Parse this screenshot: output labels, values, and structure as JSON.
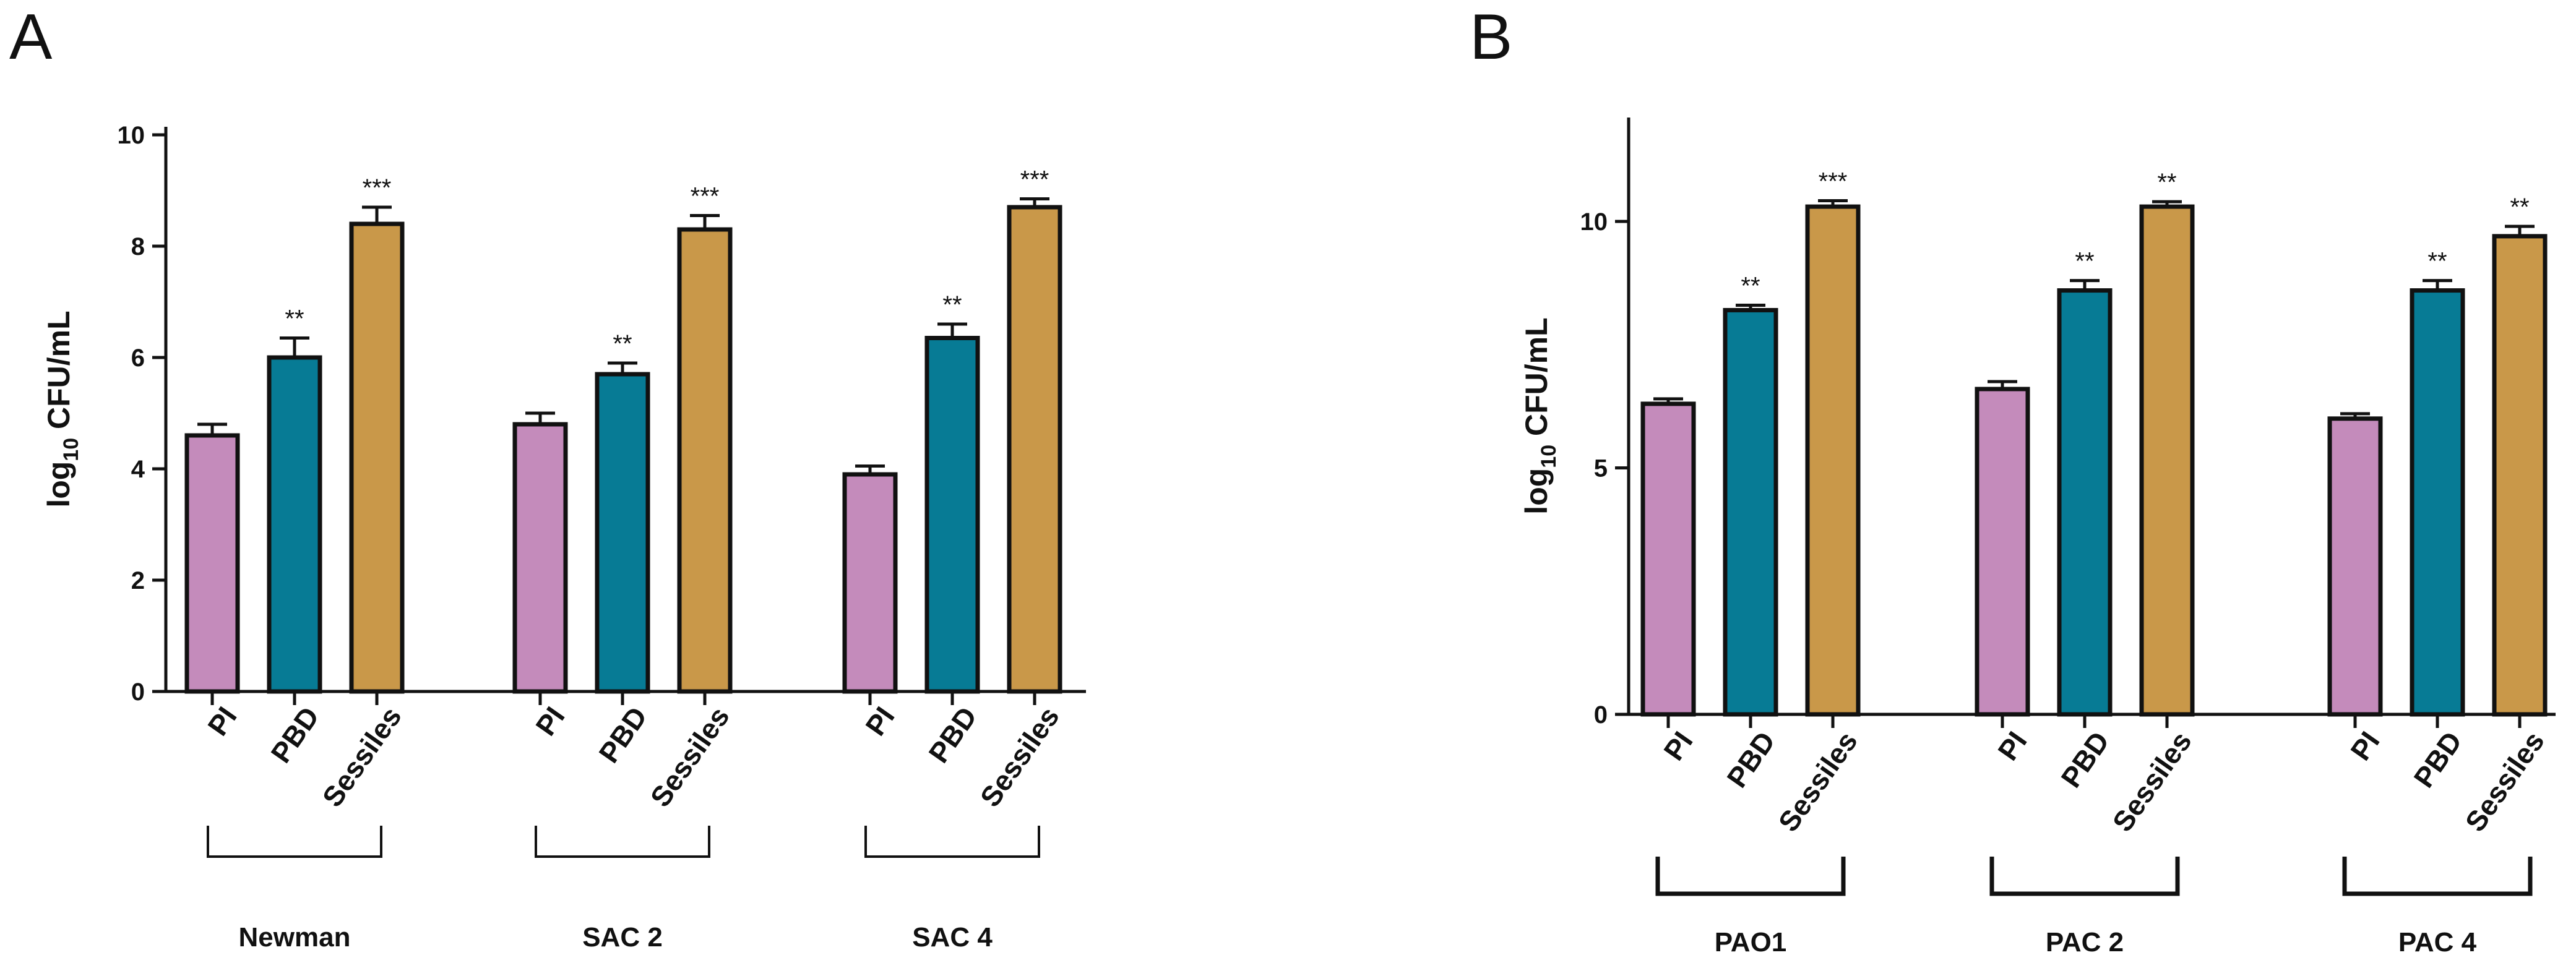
{
  "chart_data": [
    {
      "type": "bar",
      "panel": "A",
      "ylabel_main": "log",
      "ylabel_sub": "10",
      "ylabel_rest": " CFU/mL",
      "ylim": [
        0,
        10
      ],
      "yticks": [
        "0",
        "2",
        "4",
        "6",
        "8",
        "10"
      ],
      "categories": [
        "PI",
        "PBD",
        "Sessiles"
      ],
      "groups": [
        {
          "name": "Newman",
          "values": [
            4.6,
            6.0,
            8.4
          ],
          "errors": [
            0.2,
            0.35,
            0.3
          ],
          "significance": [
            "",
            "**",
            "***"
          ]
        },
        {
          "name": "SAC 2",
          "values": [
            4.8,
            5.7,
            8.3
          ],
          "errors": [
            0.2,
            0.2,
            0.25
          ],
          "significance": [
            "",
            "**",
            "***"
          ]
        },
        {
          "name": "SAC 4",
          "values": [
            3.9,
            6.35,
            8.7
          ],
          "errors": [
            0.15,
            0.25,
            0.15
          ],
          "significance": [
            "",
            "**",
            "***"
          ]
        }
      ],
      "colors": {
        "PI": "#c48bbb",
        "PBD": "#077b95",
        "Sessiles": "#c99849"
      }
    },
    {
      "type": "bar",
      "panel": "B",
      "ylabel_main": "log",
      "ylabel_sub": "10",
      "ylabel_rest": " CFU/mL",
      "ylim": [
        0,
        12
      ],
      "yticks": [
        "0",
        "5",
        "10"
      ],
      "categories": [
        "PI",
        "PBD",
        "Sessiles"
      ],
      "groups": [
        {
          "name": "PAO1",
          "values": [
            6.3,
            8.2,
            10.3
          ],
          "errors": [
            0.1,
            0.1,
            0.12
          ],
          "significance": [
            "",
            "**",
            "***"
          ]
        },
        {
          "name": "PAC 2",
          "values": [
            6.6,
            8.6,
            10.3
          ],
          "errors": [
            0.15,
            0.2,
            0.1
          ],
          "significance": [
            "",
            "**",
            "**"
          ]
        },
        {
          "name": "PAC 4",
          "values": [
            6.0,
            8.6,
            9.7
          ],
          "errors": [
            0.1,
            0.2,
            0.2
          ],
          "significance": [
            "",
            "**",
            "**"
          ]
        }
      ],
      "colors": {
        "PI": "#c48bbb",
        "PBD": "#077b95",
        "Sessiles": "#c99849"
      }
    }
  ]
}
